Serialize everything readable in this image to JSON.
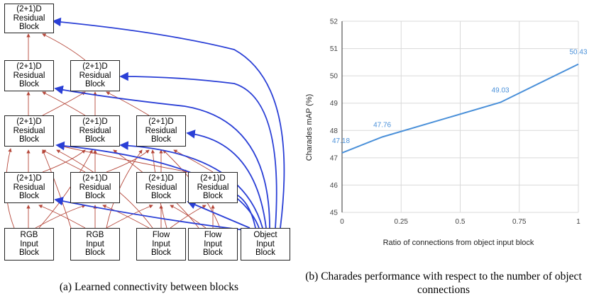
{
  "figure_a": {
    "caption": "(a) Learned connectivity between blocks",
    "blocks": {
      "top": "(2+1)D\nResidual\nBlock",
      "l3a": "(2+1)D\nResidual\nBlock",
      "l3b": "(2+1)D\nResidual\nBlock",
      "l2a": "(2+1)D\nResidual\nBlock",
      "l2b": "(2+1)D\nResidual\nBlock",
      "l2c": "(2+1)D\nResidual\nBlock",
      "l1a": "(2+1)D\nResidual\nBlock",
      "l1b": "(2+1)D\nResidual\nBlock",
      "l1c": "(2+1)D\nResidual\nBlock",
      "l1d": "(2+1)D\nResidual\nBlock",
      "rgb1": "RGB\nInput\nBlock",
      "rgb2": "RGB\nInput\nBlock",
      "flow1": "Flow\nInput\nBlock",
      "flow2": "Flow\nInput\nBlock",
      "obj": "Object\nInput\nBlock"
    },
    "colors": {
      "connection": "#b5473a",
      "object_connection": "#2a3fd6"
    }
  },
  "figure_b": {
    "caption": "(b) Charades performance with respect to the number of object connections"
  },
  "chart_data": {
    "type": "line",
    "title": "",
    "xlabel": "Ratio of connections from object input block",
    "ylabel": "Charades mAP (%)",
    "x_ticks": [
      "0",
      "0.25",
      "0.5",
      "0.75",
      "1"
    ],
    "y_ticks": [
      "45",
      "46",
      "47",
      "48",
      "49",
      "50",
      "51",
      "52"
    ],
    "xlim": [
      0,
      1
    ],
    "ylim": [
      45,
      52
    ],
    "grid": true,
    "series": [
      {
        "points": [
          {
            "x": 0,
            "y": 47.18
          },
          {
            "x": 0.17,
            "y": 47.76
          },
          {
            "x": 0.67,
            "y": 49.03
          },
          {
            "x": 1,
            "y": 50.43
          }
        ],
        "labels": [
          "47.18",
          "47.76",
          "49.03",
          "50.43"
        ]
      }
    ],
    "colors": {
      "line": "#4a90d9",
      "grid": "#d9d9d9"
    }
  }
}
